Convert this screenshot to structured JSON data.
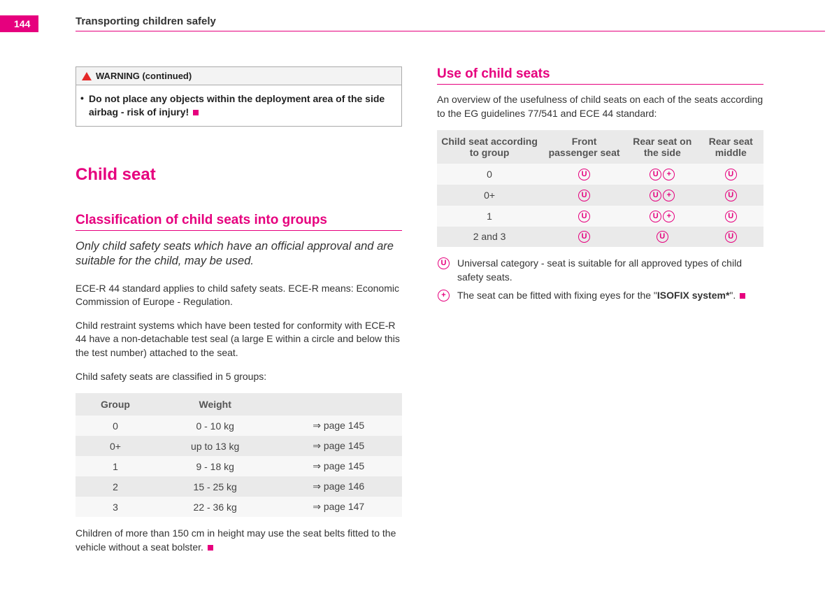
{
  "page_number": "144",
  "header_title": "Transporting children safely",
  "accent_color": "#e6007e",
  "left": {
    "warning": {
      "label": "WARNING (continued)",
      "body": "Do not place any objects within the deployment area of the side airbag - risk of injury!"
    },
    "h1": "Child seat",
    "h2": "Classification of child seats into groups",
    "lead": "Only child safety seats which have an official approval and are suitable for the child, may be used.",
    "para1": "ECE-R 44 standard applies to child safety seats. ECE-R means: Economic Commission of Europe - Regulation.",
    "para2": "Child restraint systems which have been tested for conformity with ECE-R 44 have a non-detachable test seal (a large E within a circle and below this the test number) attached to the seat.",
    "para3": "Child safety seats are classified in 5 groups:",
    "group_table": {
      "headers": [
        "Group",
        "Weight",
        ""
      ],
      "rows": [
        [
          "0",
          "0 - 10 kg",
          "page 145"
        ],
        [
          "0+",
          "up to 13 kg",
          "page 145"
        ],
        [
          "1",
          "9 - 18 kg",
          "page 145"
        ],
        [
          "2",
          "15 - 25 kg",
          "page 146"
        ],
        [
          "3",
          "22 - 36 kg",
          "page 147"
        ]
      ]
    },
    "para4": "Children of more than 150 cm in height may use the seat belts fitted to the vehicle without a seat bolster."
  },
  "right": {
    "h2": "Use of child seats",
    "intro": "An overview of the usefulness of child seats on each of the seats according to the EG guidelines 77/541 and ECE 44 standard:",
    "seat_table": {
      "headers": [
        "Child seat according to group",
        "Front passenger seat",
        "Rear seat on the side",
        "Rear seat middle"
      ],
      "rows": [
        {
          "group": "0",
          "front": [
            "U"
          ],
          "side": [
            "U",
            "+"
          ],
          "mid": [
            "U"
          ]
        },
        {
          "group": "0+",
          "front": [
            "U"
          ],
          "side": [
            "U",
            "+"
          ],
          "mid": [
            "U"
          ]
        },
        {
          "group": "1",
          "front": [
            "U"
          ],
          "side": [
            "U",
            "+"
          ],
          "mid": [
            "U"
          ]
        },
        {
          "group": "2 and 3",
          "front": [
            "U"
          ],
          "side": [
            "U"
          ],
          "mid": [
            "U"
          ]
        }
      ]
    },
    "legend_u": "Universal category - seat is suitable for all approved types of child safety seats.",
    "legend_plus_pre": "The seat can be fitted with fixing eyes for the \"",
    "legend_plus_bold": "ISOFIX system*",
    "legend_plus_post": "\"."
  }
}
